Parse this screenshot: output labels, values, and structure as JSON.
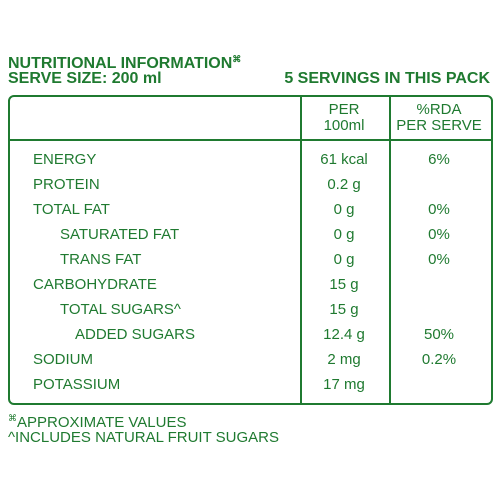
{
  "header": {
    "title": "NUTRITIONAL INFORMATION",
    "title_mark": "⌘",
    "serve_size": "SERVE SIZE: 200 ml",
    "servings": "5 SERVINGS IN THIS PACK"
  },
  "table": {
    "columns": [
      [
        "PER",
        "100ml"
      ],
      [
        "%RDA",
        "PER SERVE"
      ]
    ],
    "rows": [
      [
        "ENERGY",
        "61 kcal",
        "6%"
      ],
      [
        "PROTEIN",
        "0.2 g",
        null
      ],
      [
        "TOTAL FAT",
        "0 g",
        "0%"
      ],
      [
        "SATURATED FAT",
        "0 g",
        "0%"
      ],
      [
        "TRANS FAT",
        "0 g",
        "0%"
      ],
      [
        "CARBOHYDRATE",
        "15 g",
        null
      ],
      [
        "TOTAL SUGARS^",
        "15 g",
        null
      ],
      [
        "ADDED SUGARS",
        "12.4 g",
        "50%"
      ],
      [
        "SODIUM",
        "2 mg",
        "0.2%"
      ],
      [
        "POTASSIUM",
        "17 mg",
        null
      ]
    ]
  },
  "footnotes": [
    {
      "mark": "⌘",
      "text": "APPROXIMATE VALUES"
    },
    {
      "mark": "^",
      "text": "INCLUDES NATURAL FRUIT SUGARS"
    }
  ]
}
